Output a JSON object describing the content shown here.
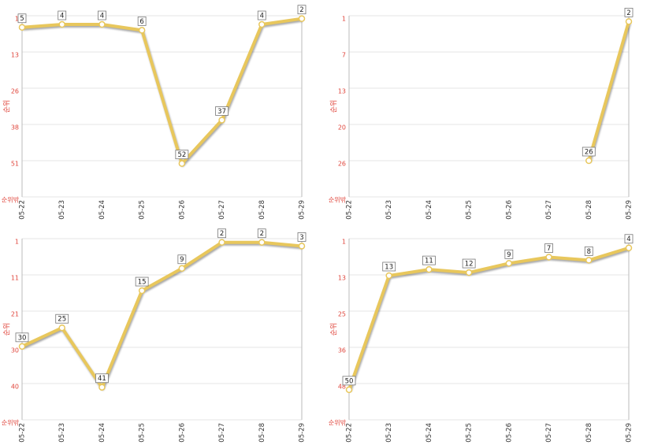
{
  "chart_data": [
    {
      "type": "line",
      "y_label": "순위",
      "categories": [
        "05-22",
        "05-23",
        "05-24",
        "05-25",
        "05-26",
        "05-27",
        "05-28",
        "05-29"
      ],
      "values": [
        5,
        4,
        4,
        6,
        52,
        37,
        4,
        2
      ],
      "color": "#e8c75c",
      "ylim": [
        63.5,
        1
      ],
      "yticks": [
        1,
        {
          "value": 13.5,
          "label": "13"
        },
        26,
        {
          "value": 38.5,
          "label": "38"
        },
        51,
        {
          "value": 63.5,
          "label": "순위밖"
        }
      ],
      "grid": true
    },
    {
      "type": "line",
      "y_label": "순위",
      "categories": [
        "05-22",
        "05-23",
        "05-24",
        "05-25",
        "05-26",
        "05-27",
        "05-28",
        "05-29"
      ],
      "values": [
        null,
        null,
        null,
        null,
        null,
        null,
        26,
        2
      ],
      "color": "#e8c75c",
      "ylim": [
        32.25,
        1
      ],
      "yticks": [
        1,
        {
          "value": 7.25,
          "label": "7"
        },
        {
          "value": 13.5,
          "label": "13"
        },
        {
          "value": 19.75,
          "label": "20"
        },
        26,
        {
          "value": 32.25,
          "label": "순위밖"
        }
      ],
      "grid": true
    },
    {
      "type": "line",
      "y_label": "순위",
      "categories": [
        "05-22",
        "05-23",
        "05-24",
        "05-25",
        "05-26",
        "05-27",
        "05-28",
        "05-29"
      ],
      "values": [
        30,
        25,
        41,
        15,
        9,
        2,
        2,
        3
      ],
      "color": "#e8c75c",
      "ylim": [
        49.75,
        1
      ],
      "yticks": [
        1,
        {
          "value": 10.75,
          "label": "11"
        },
        {
          "value": 20.5,
          "label": "21"
        },
        {
          "value": 30.25,
          "label": "30"
        },
        40,
        {
          "value": 49.75,
          "label": "순위밖"
        }
      ],
      "grid": true
    },
    {
      "type": "line",
      "y_label": "순위",
      "categories": [
        "05-22",
        "05-23",
        "05-24",
        "05-25",
        "05-26",
        "05-27",
        "05-28",
        "05-29"
      ],
      "values": [
        50,
        13,
        11,
        12,
        9,
        7,
        8,
        4
      ],
      "color": "#e8c75c",
      "ylim": [
        59.75,
        1
      ],
      "yticks": [
        1,
        {
          "value": 12.75,
          "label": "13"
        },
        {
          "value": 24.5,
          "label": "25"
        },
        {
          "value": 36.25,
          "label": "36"
        },
        48,
        {
          "value": 59.75,
          "label": "순위밖"
        }
      ],
      "grid": true
    }
  ]
}
